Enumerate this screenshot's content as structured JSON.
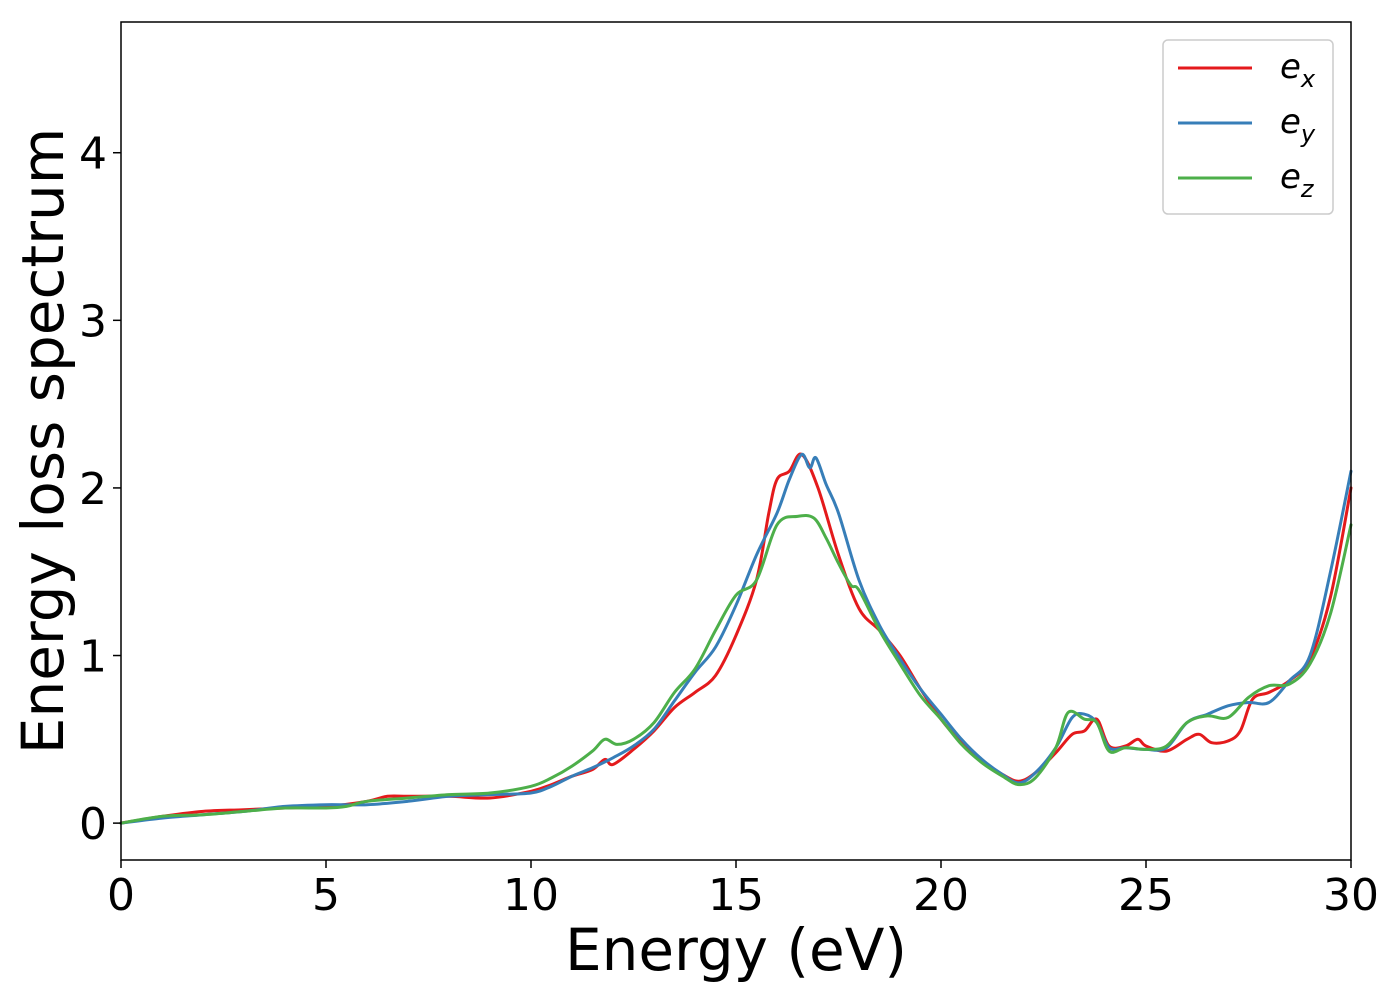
{
  "chart_data": {
    "type": "line",
    "xlabel": "Energy (eV)",
    "ylabel": "Energy loss spectrum",
    "xlim": [
      0,
      30
    ],
    "ylim": [
      -0.22,
      4.78
    ],
    "xticks": [
      0,
      5,
      10,
      15,
      20,
      25,
      30
    ],
    "yticks": [
      0,
      1,
      2,
      3,
      4
    ],
    "xtick_labels": [
      "0",
      "5",
      "10",
      "15",
      "20",
      "25",
      "30"
    ],
    "ytick_labels": [
      "0",
      "1",
      "2",
      "3",
      "4"
    ],
    "grid": false,
    "legend_position": "top-right",
    "series": [
      {
        "name": "e",
        "sub": "x",
        "color": "#e41a1c",
        "x": [
          0,
          1,
          2,
          3,
          4,
          5,
          6,
          6.5,
          7,
          8,
          9,
          10,
          10.5,
          11,
          11.5,
          11.8,
          12,
          12.5,
          13,
          13.5,
          14,
          14.5,
          15,
          15.5,
          15.8,
          16,
          16.3,
          16.6,
          17,
          17.5,
          18,
          18.5,
          19,
          19.5,
          20,
          20.5,
          21,
          21.5,
          21.9,
          22.3,
          22.8,
          23.2,
          23.5,
          23.8,
          24.1,
          24.5,
          24.8,
          25,
          25.5,
          26,
          26.3,
          26.6,
          27,
          27.3,
          27.6,
          28,
          28.5,
          29,
          29.5,
          30
        ],
        "y": [
          0,
          0.04,
          0.07,
          0.08,
          0.09,
          0.1,
          0.13,
          0.16,
          0.16,
          0.16,
          0.15,
          0.19,
          0.23,
          0.28,
          0.32,
          0.38,
          0.35,
          0.44,
          0.55,
          0.69,
          0.78,
          0.88,
          1.12,
          1.45,
          1.85,
          2.05,
          2.1,
          2.2,
          2.0,
          1.6,
          1.28,
          1.15,
          1.0,
          0.8,
          0.62,
          0.48,
          0.37,
          0.29,
          0.25,
          0.3,
          0.42,
          0.53,
          0.55,
          0.62,
          0.46,
          0.46,
          0.5,
          0.46,
          0.43,
          0.5,
          0.53,
          0.48,
          0.49,
          0.55,
          0.74,
          0.78,
          0.85,
          0.98,
          1.35,
          2.0
        ]
      },
      {
        "name": "e",
        "sub": "y",
        "color": "#377eb8",
        "x": [
          0,
          1,
          2,
          3,
          4,
          5,
          6,
          7,
          8,
          9,
          10,
          10.5,
          11,
          11.5,
          12,
          12.5,
          13,
          13.5,
          14,
          14.5,
          15,
          15.5,
          16,
          16.3,
          16.6,
          16.8,
          16.95,
          17.2,
          17.5,
          18,
          18.5,
          19,
          19.5,
          20,
          20.5,
          21,
          21.5,
          21.9,
          22.3,
          22.8,
          23.2,
          23.5,
          23.8,
          24.1,
          24.5,
          25,
          25.5,
          26,
          26.5,
          27,
          27.5,
          28,
          28.5,
          29,
          29.5,
          30
        ],
        "y": [
          0,
          0.03,
          0.05,
          0.07,
          0.1,
          0.11,
          0.11,
          0.13,
          0.16,
          0.17,
          0.18,
          0.22,
          0.28,
          0.33,
          0.39,
          0.46,
          0.56,
          0.73,
          0.9,
          1.05,
          1.3,
          1.6,
          1.85,
          2.05,
          2.2,
          2.12,
          2.18,
          2.02,
          1.85,
          1.45,
          1.18,
          0.98,
          0.8,
          0.65,
          0.5,
          0.38,
          0.29,
          0.24,
          0.3,
          0.45,
          0.63,
          0.65,
          0.6,
          0.45,
          0.45,
          0.44,
          0.45,
          0.6,
          0.65,
          0.7,
          0.72,
          0.72,
          0.85,
          1.0,
          1.5,
          2.1
        ]
      },
      {
        "name": "e",
        "sub": "z",
        "color": "#4daf4a",
        "x": [
          0,
          1,
          2,
          3,
          4,
          5,
          5.5,
          6,
          7,
          8,
          9,
          10,
          10.5,
          11,
          11.5,
          11.8,
          12.1,
          12.5,
          13,
          13.5,
          14,
          14.5,
          15,
          15.5,
          16,
          16.5,
          16.9,
          17.2,
          17.5,
          17.8,
          18,
          18.5,
          19,
          19.5,
          20,
          20.5,
          21,
          21.5,
          21.9,
          22.3,
          22.8,
          23.1,
          23.5,
          23.8,
          24.1,
          24.5,
          25,
          25.5,
          26,
          26.5,
          27,
          27.5,
          28,
          28.5,
          29,
          29.5,
          30
        ],
        "y": [
          0,
          0.04,
          0.05,
          0.07,
          0.09,
          0.09,
          0.1,
          0.13,
          0.15,
          0.17,
          0.18,
          0.22,
          0.27,
          0.34,
          0.43,
          0.5,
          0.47,
          0.5,
          0.6,
          0.78,
          0.92,
          1.15,
          1.36,
          1.45,
          1.78,
          1.83,
          1.82,
          1.7,
          1.55,
          1.42,
          1.39,
          1.15,
          0.95,
          0.76,
          0.62,
          0.47,
          0.36,
          0.28,
          0.23,
          0.27,
          0.45,
          0.66,
          0.62,
          0.6,
          0.43,
          0.45,
          0.44,
          0.46,
          0.6,
          0.64,
          0.63,
          0.75,
          0.82,
          0.83,
          0.95,
          1.25,
          1.78
        ]
      }
    ]
  }
}
